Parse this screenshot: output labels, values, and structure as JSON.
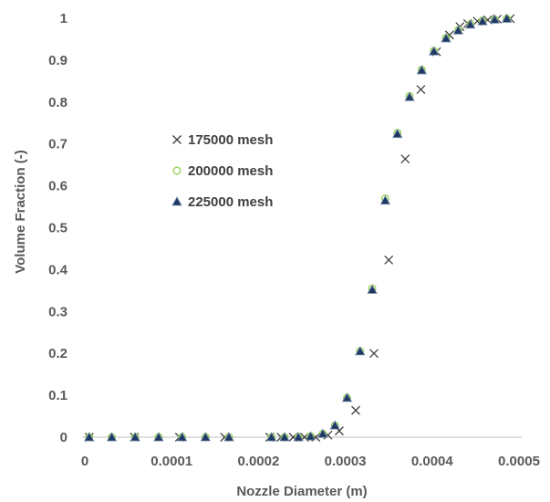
{
  "chart_data": {
    "type": "scatter",
    "xlabel": "Nozzle Diameter (m)",
    "ylabel": "Volume Fraction (-)",
    "xlim": [
      0,
      0.0005
    ],
    "ylim": [
      0,
      1
    ],
    "x_ticks": [
      "0",
      "0.0001",
      "0.0002",
      "0.0003",
      "0.0004",
      "0.0005"
    ],
    "x_tick_values": [
      0,
      0.0001,
      0.0002,
      0.0003,
      0.0004,
      0.0005
    ],
    "y_ticks": [
      "0",
      "0.1",
      "0.2",
      "0.3",
      "0.4",
      "0.5",
      "0.6",
      "0.7",
      "0.8",
      "0.9",
      "1"
    ],
    "y_tick_values": [
      0,
      0.1,
      0.2,
      0.3,
      0.4,
      0.5,
      0.6,
      0.7,
      0.8,
      0.9,
      1
    ],
    "grid": false,
    "legend_position": "center-left",
    "series": [
      {
        "name": "175000 mesh",
        "marker": "x",
        "color": "#404040",
        "points": [
          [
            5e-06,
            0
          ],
          [
            5.7e-05,
            0
          ],
          [
            0.000109,
            0
          ],
          [
            0.000161,
            0
          ],
          [
            0.000213,
            0
          ],
          [
            0.000226,
            0
          ],
          [
            0.00024,
            0
          ],
          [
            0.000253,
            0
          ],
          [
            0.000266,
            0
          ],
          [
            0.00028,
            0.005
          ],
          [
            0.000293,
            0.015
          ],
          [
            0.000312,
            0.064
          ],
          [
            0.000333,
            0.2
          ],
          [
            0.00035,
            0.423
          ],
          [
            0.000369,
            0.664
          ],
          [
            0.000387,
            0.83
          ],
          [
            0.000405,
            0.92
          ],
          [
            0.00042,
            0.96
          ],
          [
            0.000432,
            0.98
          ],
          [
            0.000441,
            0.987
          ],
          [
            0.000452,
            0.993
          ],
          [
            0.000464,
            0.996
          ],
          [
            0.000475,
            0.998
          ],
          [
            0.00049,
            0.999
          ]
        ]
      },
      {
        "name": "200000 mesh",
        "marker": "circle-open",
        "color": "#92d050",
        "points": [
          [
            5e-06,
            0
          ],
          [
            3.1e-05,
            0
          ],
          [
            5.8e-05,
            0
          ],
          [
            8.5e-05,
            0
          ],
          [
            0.000112,
            0
          ],
          [
            0.000139,
            0
          ],
          [
            0.000166,
            0
          ],
          [
            0.000215,
            0
          ],
          [
            0.00023,
            0
          ],
          [
            0.000246,
            0
          ],
          [
            0.00026,
            0.002
          ],
          [
            0.000274,
            0.008
          ],
          [
            0.000288,
            0.028
          ],
          [
            0.000302,
            0.094
          ],
          [
            0.000317,
            0.205
          ],
          [
            0.000331,
            0.355
          ],
          [
            0.000346,
            0.57
          ],
          [
            0.00036,
            0.726
          ],
          [
            0.000374,
            0.814
          ],
          [
            0.000388,
            0.877
          ],
          [
            0.000402,
            0.922
          ],
          [
            0.000416,
            0.953
          ],
          [
            0.00043,
            0.972
          ],
          [
            0.000444,
            0.986
          ],
          [
            0.000458,
            0.994
          ],
          [
            0.000472,
            0.997
          ],
          [
            0.000486,
            0.999
          ]
        ]
      },
      {
        "name": "225000 mesh",
        "marker": "triangle",
        "color": "#1f3864",
        "points": [
          [
            5e-06,
            0
          ],
          [
            3.1e-05,
            0
          ],
          [
            5.8e-05,
            0
          ],
          [
            8.5e-05,
            0
          ],
          [
            0.000112,
            0
          ],
          [
            0.000139,
            0
          ],
          [
            0.000166,
            0
          ],
          [
            0.000215,
            0
          ],
          [
            0.00023,
            0
          ],
          [
            0.000246,
            0
          ],
          [
            0.00026,
            0.002
          ],
          [
            0.000274,
            0.008
          ],
          [
            0.000288,
            0.028
          ],
          [
            0.000302,
            0.094
          ],
          [
            0.000317,
            0.205
          ],
          [
            0.000331,
            0.352
          ],
          [
            0.000346,
            0.565
          ],
          [
            0.00036,
            0.724
          ],
          [
            0.000374,
            0.812
          ],
          [
            0.000388,
            0.876
          ],
          [
            0.000402,
            0.921
          ],
          [
            0.000416,
            0.952
          ],
          [
            0.00043,
            0.971
          ],
          [
            0.000444,
            0.985
          ],
          [
            0.000458,
            0.993
          ],
          [
            0.000472,
            0.997
          ],
          [
            0.000486,
            0.999
          ]
        ]
      }
    ]
  },
  "legend": {
    "items": [
      {
        "label": "175000 mesh",
        "marker": "x"
      },
      {
        "label": "200000 mesh",
        "marker": "circle-open"
      },
      {
        "label": "225000 mesh",
        "marker": "triangle"
      }
    ]
  }
}
